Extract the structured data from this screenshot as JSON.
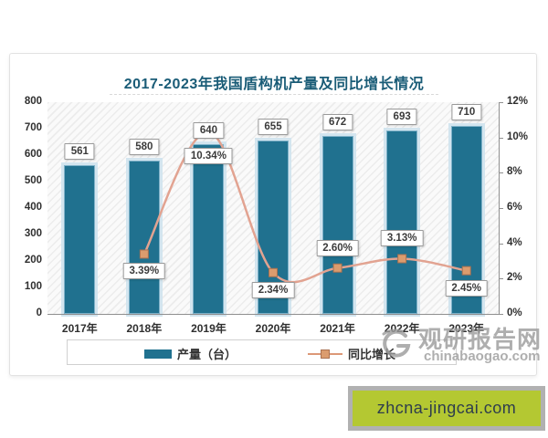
{
  "chart_data": {
    "type": "bar+line",
    "title": "2017-2023年我国盾构机产量及同比增长情况",
    "categories": [
      "2017年",
      "2018年",
      "2019年",
      "2020年",
      "2021年",
      "2022年",
      "2023年"
    ],
    "series": [
      {
        "name": "产量（台）",
        "type": "bar",
        "axis": "left",
        "values": [
          561,
          580,
          640,
          655,
          672,
          693,
          710
        ],
        "color": "#20718f"
      },
      {
        "name": "同比增长",
        "type": "line",
        "axis": "right",
        "unit": "%",
        "values": [
          null,
          3.39,
          10.34,
          2.34,
          2.6,
          3.13,
          2.45
        ],
        "labels": [
          "",
          "3.39%",
          "10.34%",
          "2.34%",
          "2.60%",
          "3.13%",
          "2.45%"
        ],
        "label_placement": [
          "",
          "below",
          "below",
          "below",
          "above",
          "above",
          "below"
        ],
        "color": "#e2a391",
        "marker_color": "#db9c6e"
      }
    ],
    "left_axis": {
      "min": 0,
      "max": 800,
      "step": 100,
      "ticks": [
        "800",
        "700",
        "600",
        "500",
        "400",
        "300",
        "200",
        "100",
        "0"
      ]
    },
    "right_axis": {
      "min": 0,
      "max": 12,
      "step": 2,
      "ticks": [
        "12%",
        "10%",
        "8%",
        "6%",
        "4%",
        "2%",
        "0%"
      ]
    },
    "legend_position": "bottom",
    "grid": false
  },
  "watermark": {
    "line1": "观研报告网",
    "line2": "chinabaogao.com",
    "color": "#9b9b9b"
  },
  "banner": {
    "text": "zhcna-jingcai.com",
    "bg_color": "#b4c832",
    "text_color": "#2e3d4d"
  },
  "colors": {
    "bar": "#20718f",
    "bar_halo": "#d3e5ef",
    "line": "#e2a391",
    "marker": "#db9c6e",
    "title": "#1a5c77"
  }
}
